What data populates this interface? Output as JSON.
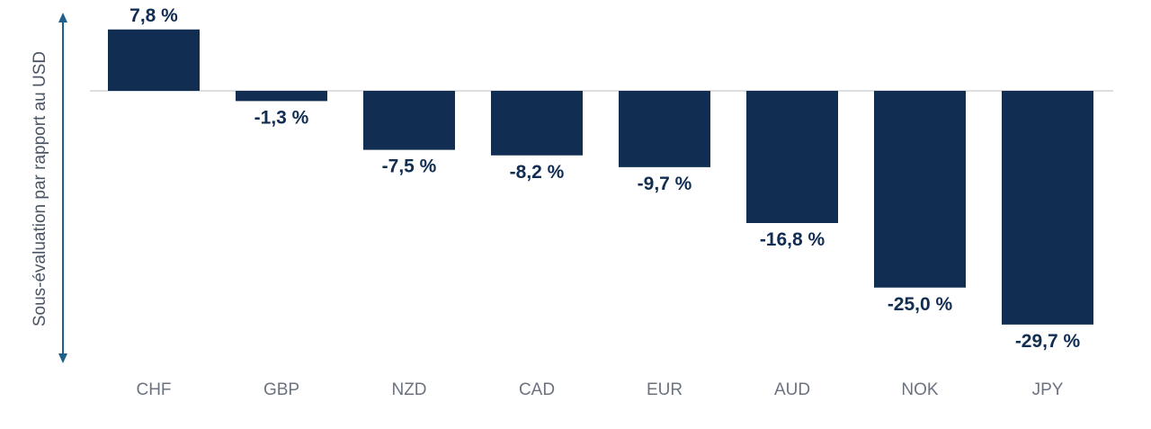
{
  "colors": {
    "bar": "#112d52",
    "label": "#112d52",
    "category": "#6b7280",
    "axis_title": "#4b5563",
    "baseline": "#b8bec6",
    "arrow": "#1f5f8b"
  },
  "chart_data": {
    "type": "bar",
    "title": "",
    "xlabel": "",
    "ylabel": "Sous-évaluation par rapport au USD",
    "categories": [
      "CHF",
      "GBP",
      "NZD",
      "CAD",
      "EUR",
      "AUD",
      "NOK",
      "JPY"
    ],
    "values": [
      7.8,
      -1.3,
      -7.5,
      -8.2,
      -9.7,
      -16.8,
      -25.0,
      -29.7
    ],
    "value_labels": [
      "7,8 %",
      "-1,3 %",
      "-7,5 %",
      "-8,2 %",
      "-9,7 %",
      "-16,8 %",
      "-25,0 %",
      "-29,7 %"
    ],
    "ylim": [
      -29.7,
      7.8
    ],
    "grid": false,
    "legend": "none"
  }
}
